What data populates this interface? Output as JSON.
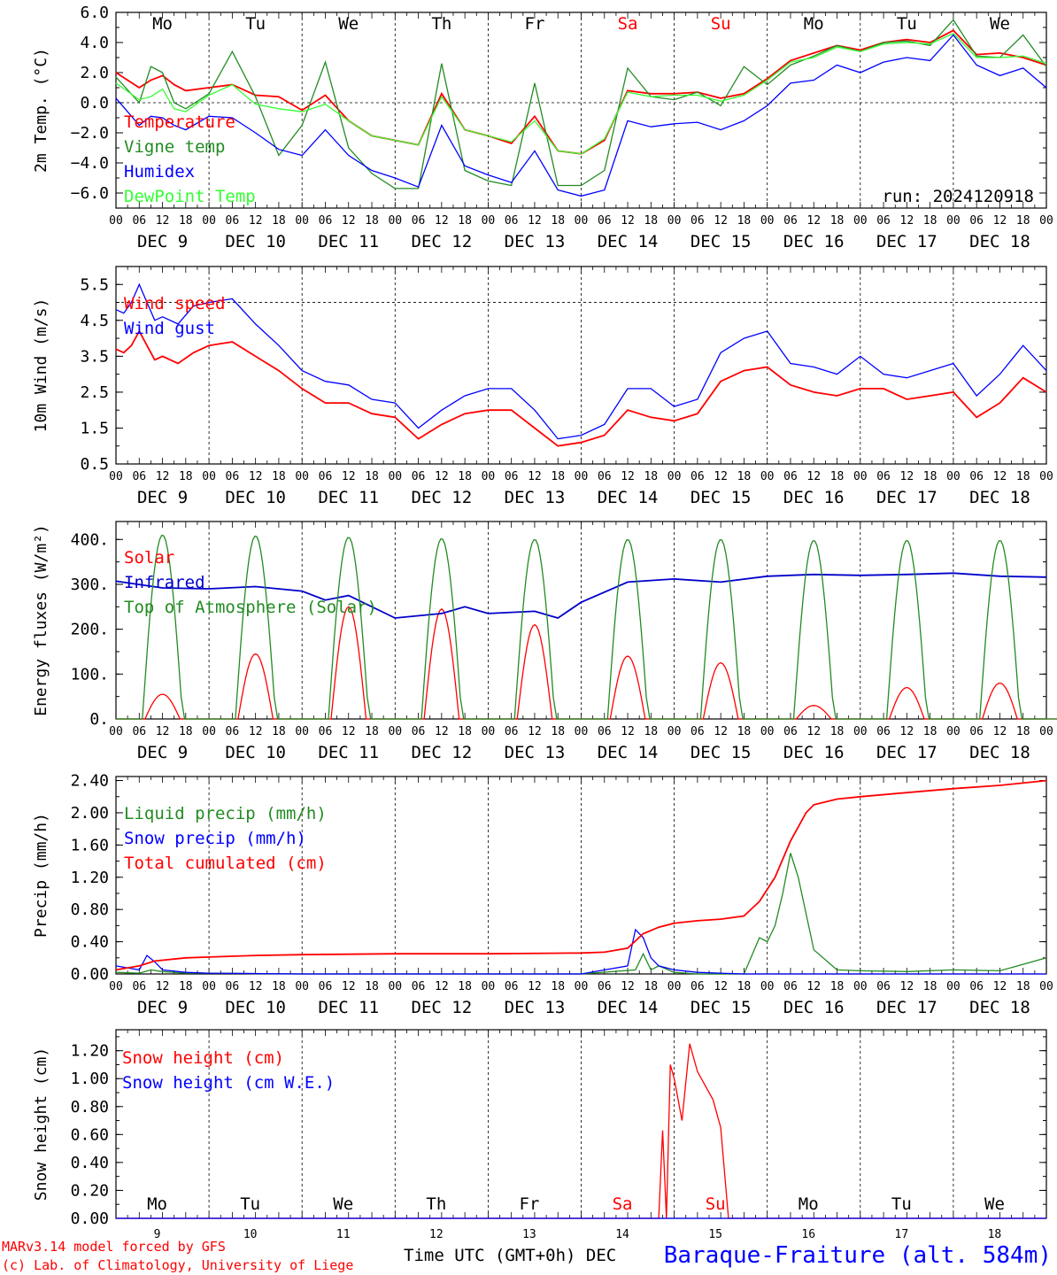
{
  "days": [
    "Mo",
    "Tu",
    "We",
    "Th",
    "Fr",
    "Sa",
    "Su",
    "Mo",
    "Tu",
    "We"
  ],
  "date_labels": [
    "DEC  9",
    "DEC 10",
    "DEC 11",
    "DEC 12",
    "DEC 13",
    "DEC 14",
    "DEC 15",
    "DEC 16",
    "DEC 17",
    "DEC 18"
  ],
  "hour_ticks": [
    "00",
    "06",
    "12",
    "18"
  ],
  "hour_end": "00",
  "bottom_day_numbers": [
    "9",
    "10",
    "11",
    "12",
    "13",
    "14",
    "15",
    "16",
    "17",
    "18"
  ],
  "weekend_color": "#ff0000",
  "weekday_color": "#000000",
  "footer": {
    "credit_line1": "MARv3.14 model forced by GFS",
    "credit_line2": "(c) Lab. of Climatology, University of Liege",
    "time_label": "Time UTC (GMT+0h) DEC",
    "station": "Baraque-Fraiture (alt. 584m)"
  },
  "chart_data": [
    {
      "type": "line",
      "ylabel": "2m Temp. (°C)",
      "ylim": [
        -7,
        6
      ],
      "yticks": [
        "6.0",
        "4.0",
        "2.0",
        "0.0",
        "−2.0",
        "−4.0",
        "−6.0"
      ],
      "run_label": "run: 2024120918",
      "x_unit": "hours since DEC 9 00 UTC",
      "series": [
        {
          "name": "Temperature",
          "color": "#ff0000",
          "x": [
            0,
            6,
            9,
            12,
            15,
            18,
            24,
            30,
            36,
            42,
            48,
            54,
            60,
            66,
            72,
            78,
            84,
            90,
            96,
            102,
            108,
            114,
            120,
            126,
            132,
            138,
            144,
            150,
            156,
            162,
            168,
            174,
            180,
            186,
            192,
            198,
            204,
            210,
            216,
            222,
            228,
            234,
            240
          ],
          "y": [
            2.0,
            1.0,
            1.5,
            1.8,
            1.2,
            0.8,
            1.0,
            1.2,
            0.5,
            0.4,
            -0.5,
            0.5,
            -1.2,
            -2.2,
            -2.5,
            -2.8,
            0.6,
            -1.8,
            -2.2,
            -2.7,
            -0.9,
            -3.2,
            -3.4,
            -2.5,
            0.8,
            0.6,
            0.6,
            0.7,
            0.3,
            0.6,
            1.6,
            2.8,
            3.3,
            3.8,
            3.5,
            4.0,
            4.2,
            4.0,
            4.8,
            3.2,
            3.3,
            3.0,
            2.5
          ]
        },
        {
          "name": "Vigne temp",
          "color": "#228b22",
          "x": [
            0,
            6,
            9,
            12,
            15,
            18,
            24,
            30,
            36,
            42,
            48,
            54,
            60,
            66,
            72,
            78,
            84,
            90,
            96,
            102,
            108,
            114,
            120,
            126,
            132,
            138,
            144,
            150,
            156,
            162,
            168,
            174,
            180,
            186,
            192,
            198,
            204,
            210,
            216,
            222,
            228,
            234,
            240
          ],
          "y": [
            1.7,
            0.0,
            2.4,
            2.0,
            0.0,
            -0.4,
            0.6,
            3.4,
            0.4,
            -3.5,
            -1.5,
            2.7,
            -3.0,
            -4.7,
            -5.7,
            -5.7,
            2.6,
            -4.5,
            -5.2,
            -5.5,
            1.3,
            -5.5,
            -5.5,
            -4.5,
            2.3,
            0.4,
            0.2,
            0.7,
            -0.2,
            2.4,
            1.2,
            2.5,
            3.1,
            3.8,
            3.4,
            4.0,
            4.1,
            3.8,
            5.5,
            3.1,
            3.0,
            4.5,
            2.4
          ]
        },
        {
          "name": "Humidex",
          "color": "#0000ff",
          "x": [
            0,
            6,
            9,
            12,
            15,
            18,
            24,
            30,
            36,
            42,
            48,
            54,
            60,
            66,
            72,
            78,
            84,
            90,
            96,
            102,
            108,
            114,
            120,
            126,
            132,
            138,
            144,
            150,
            156,
            162,
            168,
            174,
            180,
            186,
            192,
            198,
            204,
            210,
            216,
            222,
            228,
            234,
            240
          ],
          "y": [
            0.3,
            -1.5,
            -0.9,
            -1.0,
            -1.5,
            -1.8,
            -0.9,
            -1.0,
            -2.0,
            -3.1,
            -3.5,
            -1.8,
            -3.5,
            -4.5,
            -5.0,
            -5.6,
            -1.5,
            -4.2,
            -4.8,
            -5.3,
            -3.2,
            -5.8,
            -6.2,
            -5.8,
            -1.2,
            -1.6,
            -1.4,
            -1.3,
            -1.8,
            -1.2,
            -0.2,
            1.3,
            1.5,
            2.5,
            2.0,
            2.7,
            3.0,
            2.8,
            4.5,
            2.5,
            1.8,
            2.3,
            1.0
          ]
        },
        {
          "name": "DewPoint Temp",
          "color": "#33ff33",
          "x": [
            0,
            6,
            9,
            12,
            15,
            18,
            24,
            30,
            36,
            42,
            48,
            54,
            60,
            66,
            72,
            78,
            84,
            90,
            96,
            102,
            108,
            114,
            120,
            126,
            132,
            138,
            144,
            150,
            156,
            162,
            168,
            174,
            180,
            186,
            192,
            198,
            204,
            210,
            216,
            222,
            228,
            234,
            240
          ],
          "y": [
            1.3,
            0.2,
            0.4,
            0.9,
            -0.4,
            -0.6,
            0.5,
            1.2,
            -0.1,
            -0.4,
            -0.6,
            -0.1,
            -1.2,
            -2.2,
            -2.5,
            -2.8,
            0.4,
            -1.8,
            -2.2,
            -2.6,
            -1.2,
            -3.2,
            -3.4,
            -2.4,
            0.7,
            0.4,
            0.5,
            0.5,
            0.1,
            0.5,
            1.5,
            2.7,
            3.0,
            3.7,
            3.4,
            3.9,
            4.0,
            3.9,
            4.6,
            3.0,
            3.0,
            3.1,
            2.6
          ]
        }
      ],
      "reference_line": 0.0
    },
    {
      "type": "line",
      "ylabel": "10m Wind (m/s)",
      "ylim": [
        0.5,
        6.0
      ],
      "yticks": [
        "5.5",
        "4.5",
        "3.5",
        "2.5",
        "1.5",
        "0.5"
      ],
      "x_unit": "hours since DEC 9 00 UTC",
      "series": [
        {
          "name": "Wind speed",
          "color": "#ff0000",
          "x": [
            0,
            2,
            4,
            6,
            8,
            10,
            12,
            16,
            20,
            24,
            30,
            36,
            42,
            48,
            54,
            60,
            66,
            72,
            78,
            84,
            90,
            96,
            102,
            108,
            114,
            120,
            126,
            132,
            138,
            144,
            150,
            156,
            162,
            168,
            174,
            180,
            186,
            192,
            198,
            204,
            210,
            216,
            222,
            228,
            234,
            240
          ],
          "y": [
            3.7,
            3.6,
            3.8,
            4.2,
            3.8,
            3.4,
            3.5,
            3.3,
            3.6,
            3.8,
            3.9,
            3.5,
            3.1,
            2.6,
            2.2,
            2.2,
            1.9,
            1.8,
            1.2,
            1.6,
            1.9,
            2.0,
            2.0,
            1.5,
            1.0,
            1.1,
            1.3,
            2.0,
            1.8,
            1.7,
            1.9,
            2.8,
            3.1,
            3.2,
            2.7,
            2.5,
            2.4,
            2.6,
            2.6,
            2.3,
            2.4,
            2.5,
            1.8,
            2.2,
            2.9,
            2.5
          ]
        },
        {
          "name": "Wind gust",
          "color": "#0000ff",
          "x": [
            0,
            2,
            4,
            6,
            8,
            10,
            12,
            16,
            20,
            24,
            30,
            36,
            42,
            48,
            54,
            60,
            66,
            72,
            78,
            84,
            90,
            96,
            102,
            108,
            114,
            120,
            126,
            132,
            138,
            144,
            150,
            156,
            162,
            168,
            174,
            180,
            186,
            192,
            198,
            204,
            210,
            216,
            222,
            228,
            234,
            240
          ],
          "y": [
            4.8,
            4.7,
            5.0,
            5.5,
            5.0,
            4.5,
            4.6,
            4.4,
            4.9,
            5.0,
            5.1,
            4.4,
            3.8,
            3.1,
            2.8,
            2.7,
            2.3,
            2.2,
            1.5,
            2.0,
            2.4,
            2.6,
            2.6,
            2.0,
            1.2,
            1.3,
            1.6,
            2.6,
            2.6,
            2.1,
            2.3,
            3.6,
            4.0,
            4.2,
            3.3,
            3.2,
            3.0,
            3.5,
            3.0,
            2.9,
            3.1,
            3.3,
            2.4,
            3.0,
            3.8,
            3.1
          ]
        }
      ],
      "reference_line": 5.0
    },
    {
      "type": "line",
      "ylabel": "Energy fluxes (W/m²)",
      "ylim": [
        0,
        440
      ],
      "yticks": [
        "400.",
        "300.",
        "200.",
        "100.",
        "0."
      ],
      "x_unit": "hours since DEC 9 00 UTC",
      "series": [
        {
          "name": "Solar",
          "color": "#ff0000",
          "daily_peak": [
            55,
            145,
            250,
            245,
            210,
            140,
            125,
            30,
            70,
            80
          ]
        },
        {
          "name": "Infrared",
          "color": "#0000cc",
          "x": [
            0,
            12,
            24,
            36,
            48,
            54,
            60,
            72,
            84,
            90,
            96,
            108,
            114,
            120,
            132,
            144,
            156,
            168,
            180,
            192,
            204,
            216,
            228,
            240
          ],
          "y": [
            307,
            292,
            290,
            295,
            285,
            265,
            275,
            225,
            235,
            250,
            235,
            240,
            225,
            260,
            305,
            312,
            305,
            318,
            322,
            320,
            322,
            325,
            318,
            316
          ]
        },
        {
          "name": "Top of Atmosphere (Solar)",
          "color": "#228b22",
          "daily_peak": [
            410,
            408,
            405,
            402,
            400,
            400,
            400,
            398,
            398,
            398
          ]
        }
      ]
    },
    {
      "type": "line",
      "ylabel": "Precip (mm/h)",
      "ylim": [
        0,
        2.45
      ],
      "yticks": [
        "2.40",
        "2.00",
        "1.60",
        "1.20",
        "0.80",
        "0.40",
        "0.00"
      ],
      "x_unit": "hours since DEC 9 00 UTC",
      "series": [
        {
          "name": "Liquid precip (mm/h)",
          "color": "#228b22",
          "x": [
            0,
            6,
            9,
            12,
            18,
            24,
            48,
            72,
            96,
            120,
            134,
            136,
            138,
            140,
            144,
            150,
            156,
            162,
            166,
            168,
            170,
            172,
            174,
            176,
            180,
            186,
            192,
            204,
            216,
            228,
            240
          ],
          "y": [
            0.02,
            0.01,
            0.05,
            0.03,
            0.01,
            0.01,
            0.0,
            0.0,
            0.0,
            0.0,
            0.05,
            0.25,
            0.05,
            0.1,
            0.02,
            0.0,
            0.0,
            0.0,
            0.45,
            0.4,
            0.6,
            1.0,
            1.5,
            1.2,
            0.3,
            0.05,
            0.04,
            0.03,
            0.05,
            0.04,
            0.2
          ]
        },
        {
          "name": "Snow precip (mm/h)",
          "color": "#0000ff",
          "x": [
            0,
            6,
            8,
            10,
            12,
            18,
            24,
            48,
            72,
            96,
            120,
            132,
            134,
            136,
            138,
            140,
            144,
            150,
            156,
            162,
            240
          ],
          "y": [
            0.1,
            0.05,
            0.23,
            0.15,
            0.05,
            0.02,
            0.01,
            0.0,
            0.0,
            0.0,
            0.0,
            0.1,
            0.55,
            0.45,
            0.2,
            0.1,
            0.05,
            0.02,
            0.01,
            0.0,
            0.0
          ]
        },
        {
          "name": "Total cumulated (cm)",
          "color": "#ff0000",
          "x": [
            0,
            6,
            10,
            18,
            24,
            36,
            48,
            72,
            96,
            120,
            126,
            132,
            136,
            140,
            144,
            150,
            156,
            162,
            166,
            170,
            174,
            178,
            180,
            186,
            192,
            204,
            216,
            228,
            240
          ],
          "y": [
            0.05,
            0.1,
            0.16,
            0.2,
            0.21,
            0.23,
            0.24,
            0.25,
            0.25,
            0.26,
            0.27,
            0.32,
            0.5,
            0.58,
            0.63,
            0.66,
            0.68,
            0.72,
            0.9,
            1.2,
            1.65,
            2.0,
            2.1,
            2.17,
            2.2,
            2.25,
            2.3,
            2.34,
            2.4
          ]
        }
      ]
    },
    {
      "type": "line",
      "ylabel": "Snow height (cm)",
      "ylim": [
        0,
        1.35
      ],
      "yticks": [
        "1.20",
        "1.00",
        "0.80",
        "0.60",
        "0.40",
        "0.20",
        "0.00"
      ],
      "x_unit": "hours since DEC 9 00 UTC",
      "series": [
        {
          "name": "Snow height (cm)",
          "color": "#ff0000",
          "x": [
            0,
            140,
            141,
            142,
            143,
            144,
            146,
            148,
            150,
            152,
            154,
            156,
            158,
            159,
            240
          ],
          "y": [
            0,
            0,
            0.63,
            0,
            1.1,
            1.0,
            0.7,
            1.25,
            1.05,
            0.95,
            0.85,
            0.65,
            0,
            0,
            0
          ]
        },
        {
          "name": "Snow height (cm W.E.)",
          "color": "#0000ff",
          "x": [
            0,
            240
          ],
          "y": [
            0,
            0
          ]
        }
      ]
    }
  ]
}
